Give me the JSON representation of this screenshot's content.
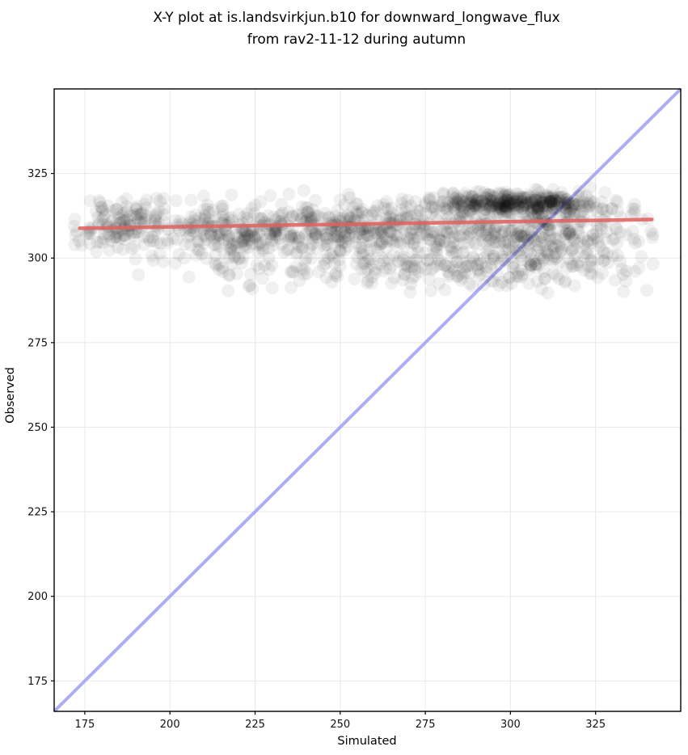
{
  "title": {
    "line1": "X-Y plot at is.landsvirkjun.b10 for downward_longwave_flux",
    "line2": "from rav2-11-12 during autumn"
  },
  "chart_data": {
    "type": "scatter",
    "xlabel": "Simulated",
    "ylabel": "Observed",
    "xlim": [
      166,
      350
    ],
    "ylim": [
      166,
      350
    ],
    "xticks": [
      175,
      200,
      225,
      250,
      275,
      300,
      325
    ],
    "yticks": [
      175,
      200,
      225,
      250,
      275,
      300,
      325
    ],
    "grid": true,
    "grid_color": "#e8e8e8",
    "spine_color": "#000000",
    "identity_line": {
      "name": "one-to-one-line",
      "color": "#a4a4f4",
      "opacity": 0.9,
      "width": 4,
      "from": [
        166,
        166
      ],
      "to": [
        350,
        350
      ]
    },
    "fit_line": {
      "name": "linear-fit-line",
      "color": "#e05f5f",
      "opacity": 0.85,
      "width": 4.5,
      "from": [
        173.5,
        308.8
      ],
      "to": [
        341.5,
        311.4
      ]
    },
    "points": {
      "marker_color": "#000000",
      "marker_alpha": 0.06,
      "marker_radius_px": 8,
      "seed": 12345,
      "n_total": 1660,
      "x_clip": [
        171,
        342
      ],
      "y_clip": [
        286.5,
        321
      ],
      "clusters": [
        {
          "name": "left-band",
          "n": 160,
          "x_mean": 187,
          "x_sd": 10,
          "y_mean": 309.0,
          "y_sd": 4.0
        },
        {
          "name": "mid-left-cluster",
          "n": 230,
          "x_mean": 222,
          "x_sd": 11,
          "y_mean": 307.5,
          "y_sd": 4.2
        },
        {
          "name": "mid-band",
          "n": 200,
          "x_mean": 250,
          "x_sd": 12,
          "y_mean": 308.5,
          "y_sd": 4.5
        },
        {
          "name": "right-broad",
          "n": 420,
          "x_mean": 297,
          "x_sd": 27,
          "y_mean": 308.0,
          "y_sd": 4.8
        },
        {
          "name": "top-dense",
          "n": 380,
          "x_mean": 302,
          "x_sd": 13,
          "y_mean": 316.3,
          "y_sd": 1.6
        },
        {
          "name": "low-tail",
          "n": 230,
          "x_mean": 292,
          "x_sd": 29,
          "y_mean": 297.5,
          "y_sd": 3.8
        },
        {
          "name": "low-left-sparse",
          "n": 40,
          "x_mean": 228,
          "x_sd": 18,
          "y_mean": 296.5,
          "y_sd": 3.0
        }
      ]
    }
  }
}
